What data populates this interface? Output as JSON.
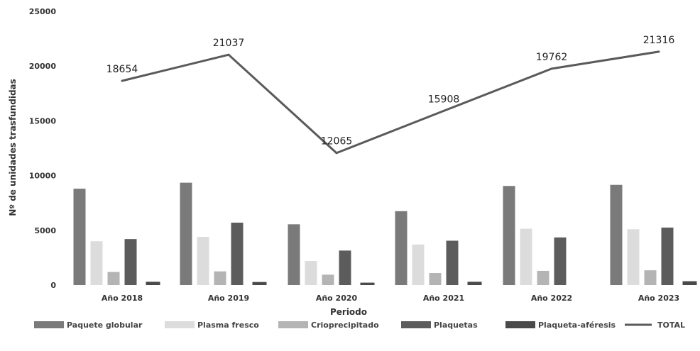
{
  "chart_data": {
    "type": "bar",
    "categories": [
      "Año 2018",
      "Año 2019",
      "Año 2020",
      "Año 2021",
      "Año 2022",
      "Año 2023"
    ],
    "series": [
      {
        "name": "Paquete globular",
        "kind": "bar",
        "color": "#7a7a7a",
        "values": [
          8800,
          9350,
          5550,
          6750,
          9050,
          9150
        ]
      },
      {
        "name": "Plasma fresco",
        "kind": "bar",
        "color": "#dcdcdc",
        "values": [
          4000,
          4400,
          2200,
          3700,
          5150,
          5100
        ]
      },
      {
        "name": "Crioprecipitado",
        "kind": "bar",
        "color": "#b4b4b4",
        "values": [
          1200,
          1250,
          950,
          1100,
          1300,
          1350
        ]
      },
      {
        "name": "Plaquetas",
        "kind": "bar",
        "color": "#5c5c5c",
        "values": [
          4200,
          5700,
          3150,
          4050,
          4350,
          5250
        ]
      },
      {
        "name": "Plaqueta-aféresis",
        "kind": "bar",
        "color": "#4a4a4a",
        "values": [
          300,
          280,
          220,
          300,
          0,
          350
        ]
      },
      {
        "name": "TOTAL",
        "kind": "line",
        "color": "#5a5a5a",
        "values": [
          18654,
          21037,
          12065,
          15908,
          19762,
          21316
        ]
      }
    ],
    "data_labels": [
      "18654",
      "21037",
      "12065",
      "15908",
      "19762",
      "21316"
    ],
    "y_ticks": [
      "0",
      "5000",
      "10000",
      "15000",
      "20000",
      "25000"
    ],
    "xlabel": "Periodo",
    "ylabel": "Nº de unidades trasfundidas",
    "ylim": [
      0,
      25000
    ],
    "grid": false,
    "legend_position": "bottom"
  }
}
